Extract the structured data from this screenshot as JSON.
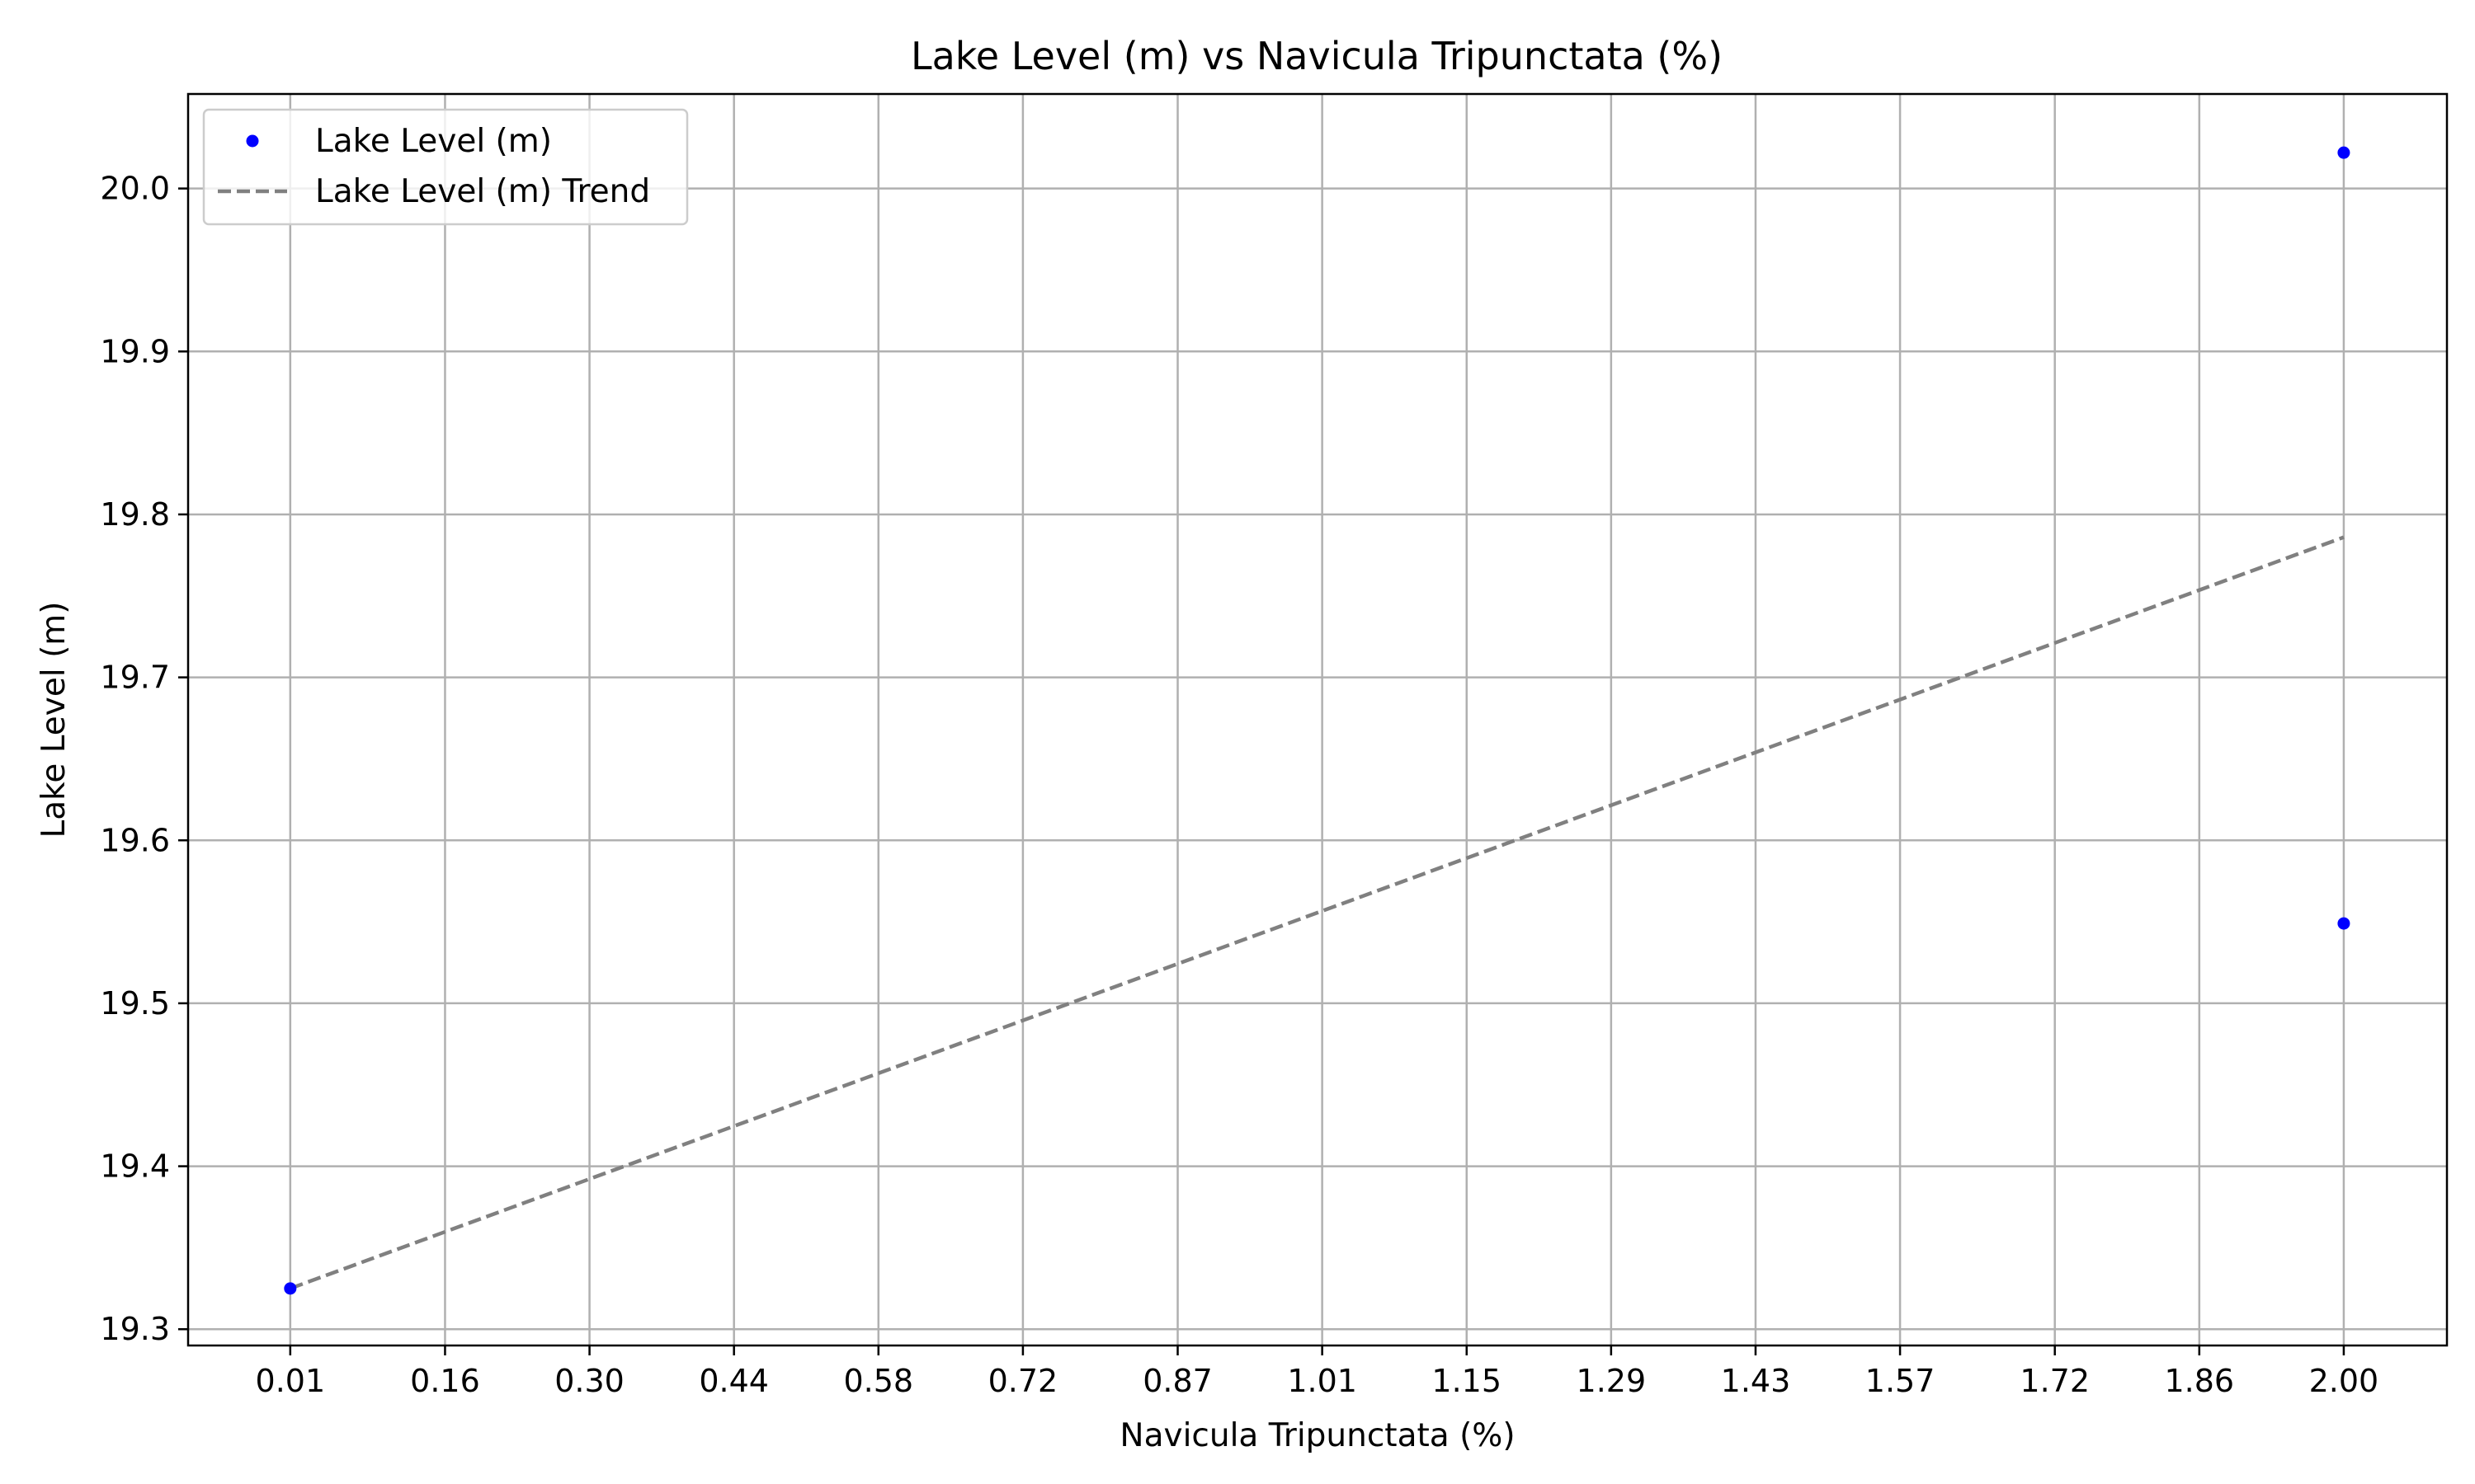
{
  "chart_data": {
    "type": "scatter",
    "title": "Lake Level (m) vs Navicula Tripunctata (%)",
    "xlabel": "Navicula Tripunctata (%)",
    "ylabel": "Lake Level (m)",
    "x_ticks": [
      "0.01",
      "0.16",
      "0.30",
      "0.44",
      "0.58",
      "0.72",
      "0.87",
      "1.01",
      "1.15",
      "1.29",
      "1.43",
      "1.57",
      "1.72",
      "1.86",
      "2.00"
    ],
    "y_ticks": [
      "19.3",
      "19.4",
      "19.5",
      "19.6",
      "19.7",
      "19.8",
      "19.9",
      "20.0"
    ],
    "xlim": [
      -0.089,
      2.1
    ],
    "ylim": [
      19.29,
      20.058
    ],
    "grid": true,
    "legend_position": "top-left",
    "series": [
      {
        "name": "Lake Level (m)",
        "kind": "scatter",
        "color": "#0000ff",
        "points": [
          {
            "x": 0.01,
            "y": 19.325
          },
          {
            "x": 2.0,
            "y": 20.022
          },
          {
            "x": 2.0,
            "y": 19.549
          }
        ]
      },
      {
        "name": "Lake Level (m) Trend",
        "kind": "line",
        "style": "dashed",
        "color": "#808080",
        "points": [
          {
            "x": 0.01,
            "y": 19.325
          },
          {
            "x": 2.0,
            "y": 19.786
          }
        ]
      }
    ]
  }
}
